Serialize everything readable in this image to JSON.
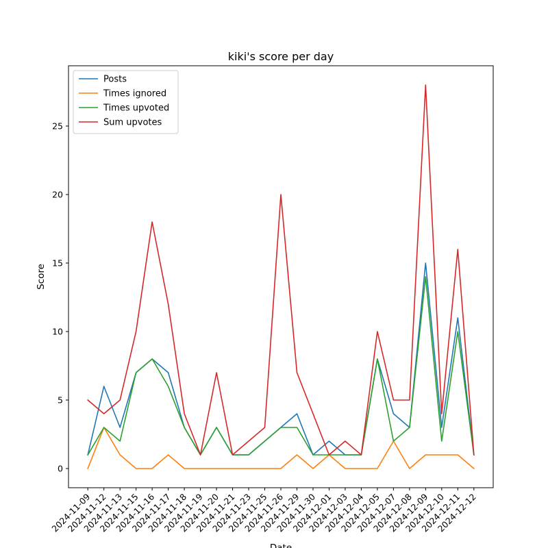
{
  "chart_data": {
    "type": "line",
    "title": "kiki's score per day",
    "xlabel": "Date",
    "ylabel": "Score",
    "x": [
      "2024-11-09",
      "2024-11-12",
      "2024-11-13",
      "2024-11-15",
      "2024-11-16",
      "2024-11-17",
      "2024-11-18",
      "2024-11-19",
      "2024-11-20",
      "2024-11-21",
      "2024-11-23",
      "2024-11-25",
      "2024-11-26",
      "2024-11-29",
      "2024-11-30",
      "2024-12-01",
      "2024-12-03",
      "2024-12-04",
      "2024-12-05",
      "2024-12-07",
      "2024-12-08",
      "2024-12-09",
      "2024-12-10",
      "2024-12-11",
      "2024-12-12"
    ],
    "ylim": [
      -1.4,
      29.4
    ],
    "yticks": [
      0,
      5,
      10,
      15,
      20,
      25
    ],
    "grid": false,
    "legend_position": "top-left",
    "series": [
      {
        "name": "Posts",
        "color": "#1f77b4",
        "values": [
          1,
          6,
          3,
          7,
          8,
          7,
          3,
          1,
          3,
          1,
          1,
          2,
          3,
          4,
          1,
          2,
          1,
          1,
          8,
          4,
          3,
          15,
          3,
          11,
          1
        ]
      },
      {
        "name": "Times ignored",
        "color": "#ff7f0e",
        "values": [
          0,
          3,
          1,
          0,
          0,
          1,
          0,
          0,
          0,
          0,
          0,
          0,
          0,
          1,
          0,
          1,
          0,
          0,
          0,
          2,
          0,
          1,
          1,
          1,
          0
        ]
      },
      {
        "name": "Times upvoted",
        "color": "#2ca02c",
        "values": [
          1,
          3,
          2,
          7,
          8,
          6,
          3,
          1,
          3,
          1,
          1,
          2,
          3,
          3,
          1,
          1,
          1,
          1,
          8,
          2,
          3,
          14,
          2,
          10,
          1
        ]
      },
      {
        "name": "Sum upvotes",
        "color": "#d62728",
        "values": [
          5,
          4,
          5,
          10,
          18,
          12,
          4,
          1,
          7,
          1,
          2,
          3,
          20,
          7,
          4,
          1,
          2,
          1,
          10,
          5,
          5,
          28,
          4,
          16,
          1
        ]
      }
    ]
  }
}
